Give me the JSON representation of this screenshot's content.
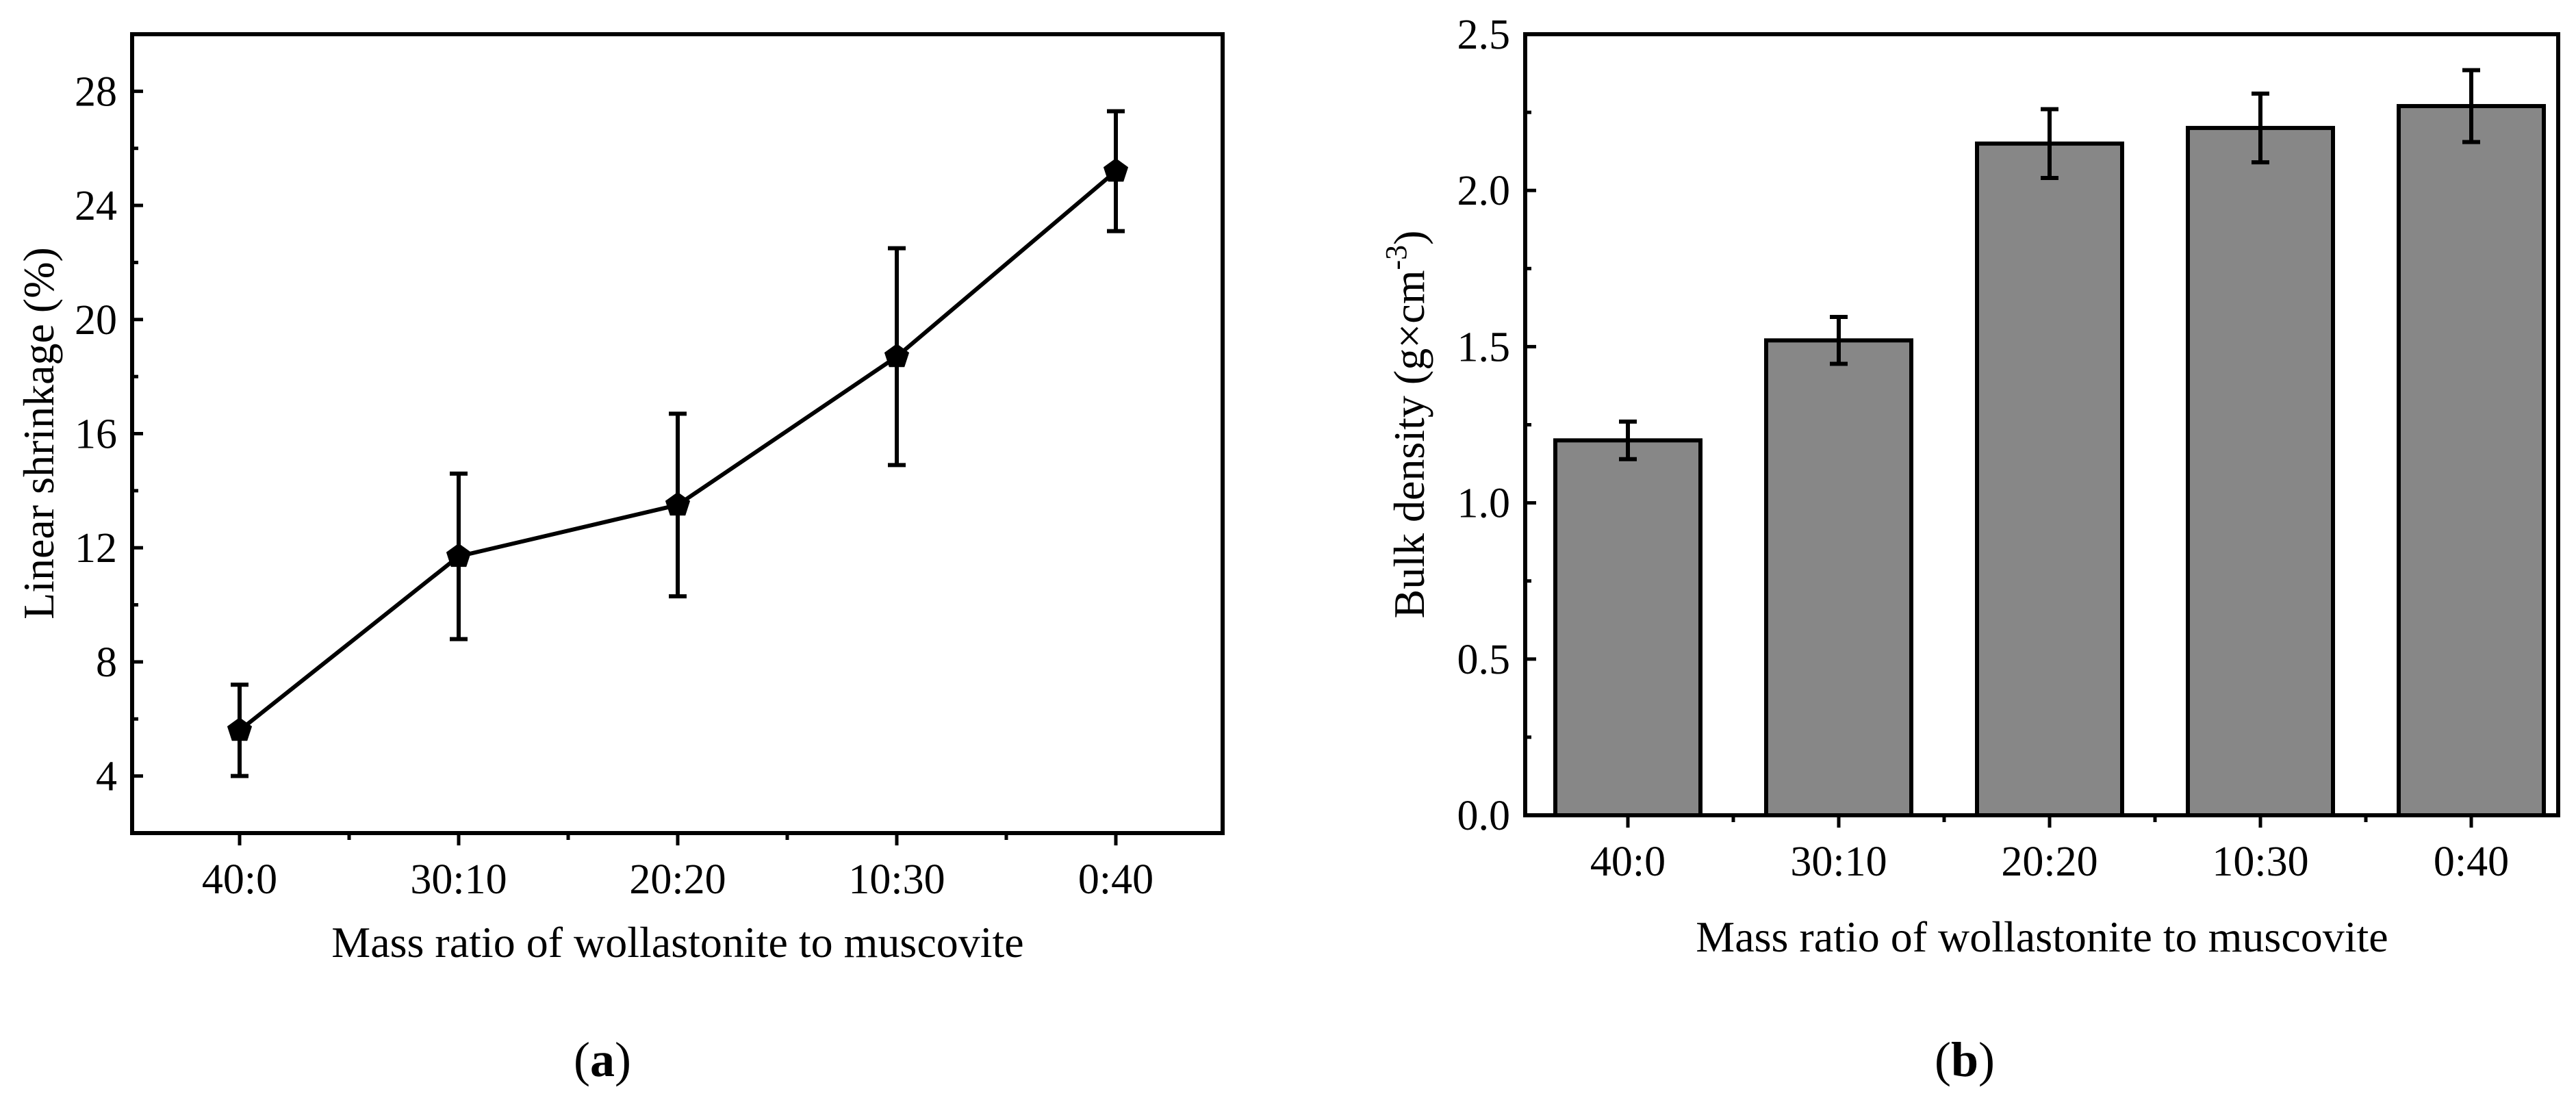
{
  "chart_data": [
    {
      "type": "line",
      "panel_label": "a",
      "xlabel": "Mass ratio of wollastonite to muscovite",
      "ylabel": "Linear shrinkage (%)",
      "categories": [
        "40:0",
        "30:10",
        "20:20",
        "10:30",
        "0:40"
      ],
      "series": [
        {
          "name": "Linear shrinkage",
          "values": [
            5.6,
            11.7,
            13.5,
            18.7,
            25.2
          ],
          "errors": [
            1.6,
            2.9,
            3.2,
            3.8,
            2.1
          ]
        }
      ],
      "ylim": [
        2,
        30
      ],
      "yticks": [
        4,
        8,
        12,
        16,
        20,
        24,
        28
      ],
      "ytick_labels": [
        "4",
        "8",
        "12",
        "16",
        "20",
        "24",
        "28"
      ],
      "marker": "pentagon",
      "color": "#000000"
    },
    {
      "type": "bar",
      "panel_label": "b",
      "xlabel": "Mass ratio of wollastonite to muscovite",
      "ylabel_main": "Bulk density (g×cm",
      "ylabel_sup": "-3",
      "ylabel_end": ")",
      "categories": [
        "40:0",
        "30:10",
        "20:20",
        "10:30",
        "0:40"
      ],
      "series": [
        {
          "name": "Bulk density",
          "values": [
            1.2,
            1.52,
            2.15,
            2.2,
            2.27
          ],
          "errors": [
            0.06,
            0.075,
            0.11,
            0.11,
            0.115
          ]
        }
      ],
      "ylim": [
        0,
        2.5
      ],
      "yticks": [
        0,
        0.5,
        1.0,
        1.5,
        2.0,
        2.5
      ],
      "ytick_labels": [
        "0.0",
        "0.5",
        "1.0",
        "1.5",
        "2.0",
        "2.5"
      ],
      "bar_color": "#878787"
    }
  ]
}
